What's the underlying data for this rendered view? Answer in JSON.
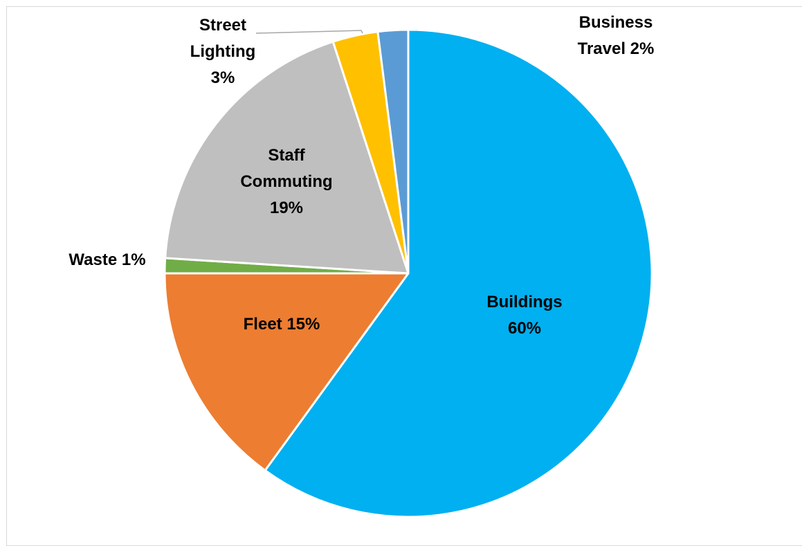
{
  "chart_data": {
    "type": "pie",
    "slices": [
      {
        "name": "Buildings",
        "value": 60,
        "color": "#00B0F0",
        "label_lines": [
          "Buildings",
          "60%"
        ]
      },
      {
        "name": "Fleet",
        "value": 15,
        "color": "#ED7D31",
        "label_lines": [
          "Fleet 15%"
        ]
      },
      {
        "name": "Waste",
        "value": 1,
        "color": "#70AD47",
        "label_lines": [
          "Waste 1%"
        ]
      },
      {
        "name": "Staff Commuting",
        "value": 19,
        "color": "#BFBFBF",
        "label_lines": [
          "Staff",
          "Commuting",
          "19%"
        ]
      },
      {
        "name": "Street Lighting",
        "value": 3,
        "color": "#FFC000",
        "label_lines": [
          "Street",
          "Lighting",
          "3%"
        ]
      },
      {
        "name": "Business Travel",
        "value": 2,
        "color": "#5B9BD5",
        "label_lines": [
          "Business",
          "Travel 2%"
        ]
      }
    ]
  }
}
